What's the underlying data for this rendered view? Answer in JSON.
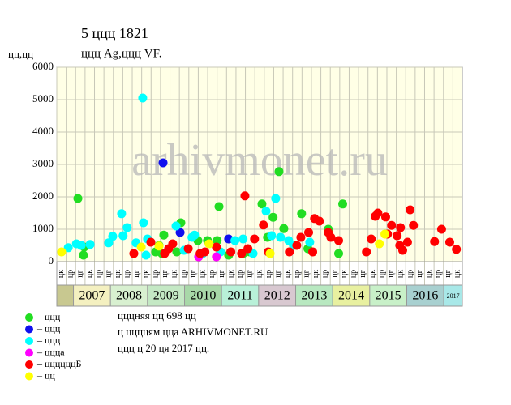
{
  "chart_data": {
    "type": "scatter",
    "title": "5 ццц 1821",
    "subtitle": "ццц Ag,ццц VF.",
    "y_label": "цц,цц",
    "watermark": "arhivmonet.ru",
    "xlim": [
      2006.55,
      2017.5
    ],
    "ylim": [
      0,
      6000
    ],
    "yticks": [
      0,
      1000,
      2000,
      3000,
      4000,
      5000,
      6000
    ],
    "grid": true,
    "years": [
      2007,
      2008,
      2009,
      2010,
      2011,
      2012,
      2013,
      2014,
      2015,
      2016,
      2017
    ],
    "year_colors": [
      "#f4f0c0",
      "#d8f0d0",
      "#c4e8c4",
      "#a8d8a8",
      "#b8f0d8",
      "#d8c8d0",
      "#b8e8c0",
      "#e8f0a0",
      "#c8f0c8",
      "#a8d0d0",
      "#a8e8e8"
    ],
    "quarter_labels": [
      "цк",
      "цр",
      "цг",
      "цк",
      "цр",
      "цг",
      "цк",
      "цр",
      "цг",
      "цк",
      "цр",
      "цг",
      "цк",
      "цр",
      "цг",
      "цк",
      "цр",
      "цг",
      "цк",
      "цр",
      "цг",
      "цк",
      "цр",
      "цг",
      "цк",
      "цр",
      "цг",
      "цк",
      "цр",
      "цг",
      "цк",
      "цр",
      "цг",
      "цк",
      "цр",
      "цг",
      "цк",
      "цр",
      "цг",
      "цк",
      "цр",
      "цг",
      "цк"
    ],
    "series": [
      {
        "name": "– ццц",
        "color": "#22dd22",
        "x": [
          2007.12,
          2007.27,
          2007.29,
          2009.22,
          2009.31,
          2009.44,
          2009.39,
          2009.79,
          2009.9,
          2010.36,
          2010.62,
          2010.93,
          2010.88,
          2011.19,
          2011.58,
          2011.76,
          2012.09,
          2012.24,
          2012.39,
          2012.55,
          2012.68,
          2013.16,
          2013.33,
          2013.88,
          2014.16,
          2014.27
        ],
        "values": [
          1950,
          200,
          450,
          300,
          500,
          820,
          250,
          300,
          1200,
          650,
          650,
          1700,
          650,
          200,
          250,
          300,
          1780,
          750,
          1370,
          2780,
          1020,
          1480,
          400,
          1000,
          250,
          1780
        ]
      },
      {
        "name": "– ццц",
        "color": "#1010ee",
        "x": [
          2009.42,
          2009.88,
          2011.19
        ],
        "values": [
          3050,
          900,
          700
        ]
      },
      {
        "name": "– ццц",
        "color": "#00ffff",
        "x": [
          2006.86,
          2007.08,
          2007.21,
          2007.45,
          2007.95,
          2008.06,
          2008.3,
          2008.34,
          2008.45,
          2008.69,
          2008.87,
          2008.89,
          2008.96,
          2009.0,
          2009.77,
          2009.99,
          2010.2,
          2010.27,
          2010.49,
          2010.97,
          2011.36,
          2011.58,
          2011.85,
          2012.2,
          2012.35,
          2012.46,
          2012.59,
          2012.81,
          2012.94,
          2013.38
        ],
        "values": [
          430,
          550,
          500,
          530,
          580,
          780,
          1480,
          800,
          1050,
          580,
          5050,
          1200,
          200,
          700,
          1100,
          350,
          750,
          820,
          250,
          300,
          650,
          700,
          250,
          1560,
          800,
          1950,
          750,
          650,
          500,
          600
        ]
      },
      {
        "name": "– ццца",
        "color": "#ff00ff",
        "x": [
          2010.86,
          2010.38
        ],
        "values": [
          150,
          150
        ]
      },
      {
        "name": "– ццццццБ",
        "color": "#ff0000",
        "x": [
          2008.63,
          2009.09,
          2009.46,
          2009.57,
          2009.68,
          2010.1,
          2010.42,
          2010.55,
          2010.86,
          2011.25,
          2011.54,
          2011.63,
          2011.71,
          2011.89,
          2012.13,
          2012.26,
          2012.83,
          2013.03,
          2013.14,
          2013.35,
          2013.51,
          2013.64,
          2013.88,
          2013.95,
          2014.16,
          2014.91,
          2015.04,
          2015.15,
          2015.22,
          2015.43,
          2015.48,
          2015.59,
          2015.74,
          2015.81,
          2015.83,
          2015.89,
          2016.02,
          2016.09,
          2016.18,
          2016.75,
          2016.94,
          2017.16,
          2017.34,
          2013.46
        ],
        "values": [
          250,
          600,
          250,
          400,
          550,
          400,
          250,
          300,
          450,
          300,
          250,
          2030,
          400,
          700,
          1130,
          300,
          300,
          500,
          750,
          900,
          1330,
          1250,
          900,
          750,
          650,
          300,
          700,
          1400,
          1500,
          1380,
          850,
          1120,
          800,
          500,
          1050,
          350,
          600,
          1600,
          1120,
          620,
          1000,
          600,
          380,
          300
        ]
      },
      {
        "name": "– цц",
        "color": "#ffff00",
        "x": [
          2006.68,
          2008.83,
          2009.31,
          2010.66,
          2012.31,
          2015.26,
          2015.41
        ],
        "values": [
          300,
          450,
          480,
          550,
          250,
          550,
          850
        ]
      }
    ],
    "notes": [
      "цццняя цц 698 цц",
      "ц ццццям ццa ARHIVMONET.RU",
      "ццц ц 20 ця 2017 цц."
    ]
  }
}
